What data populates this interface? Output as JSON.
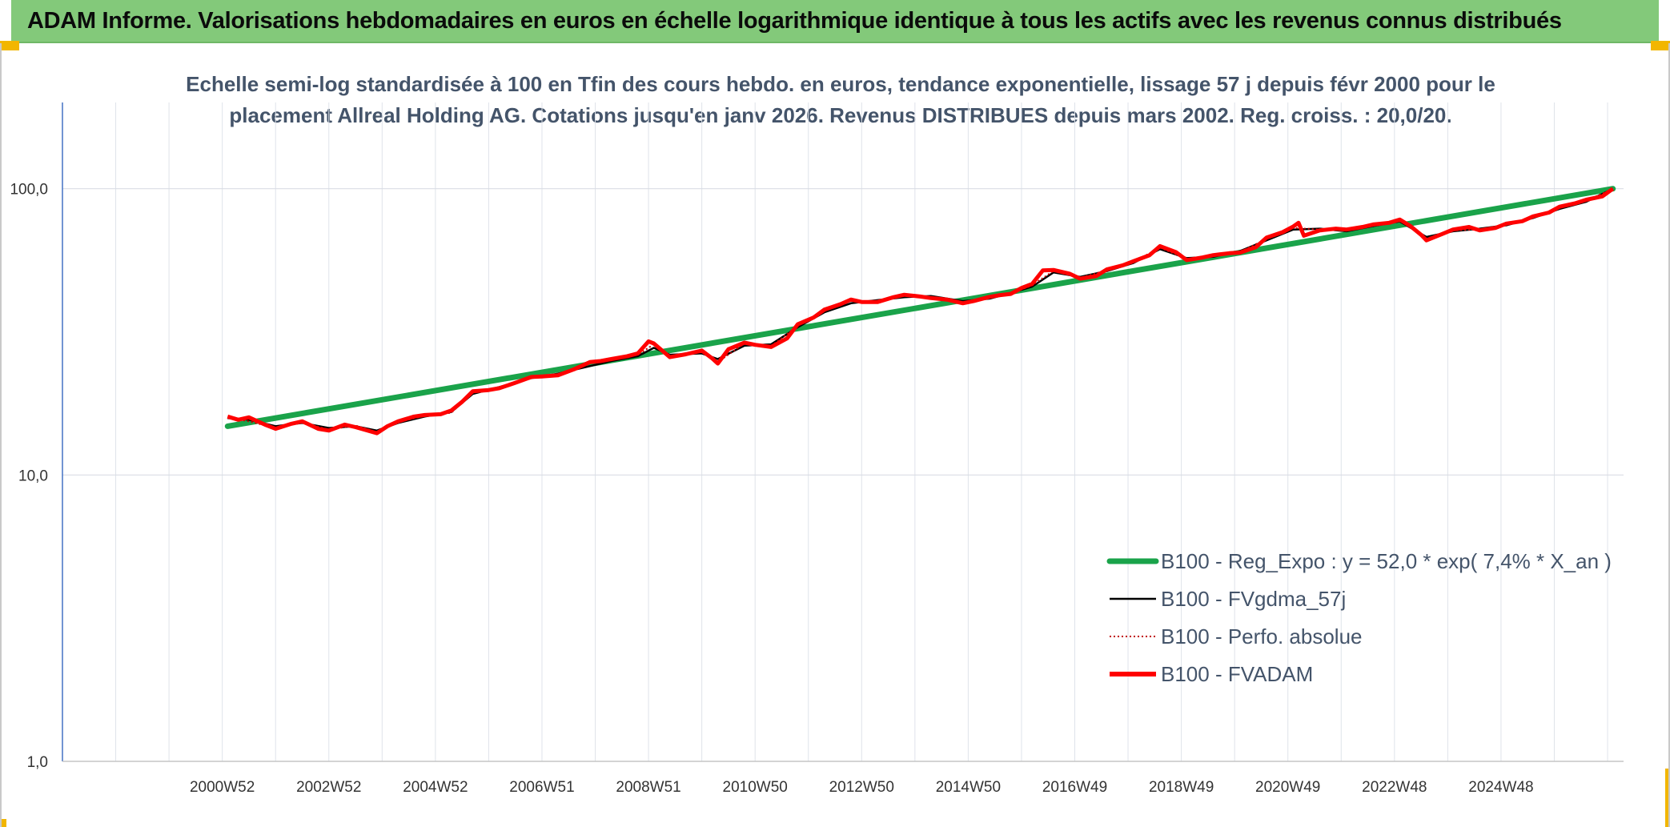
{
  "header": {
    "title": "ADAM Informe. Valorisations hebdomadaires en euros en échelle logarithmique identique à tous les actifs avec les revenus connus distribués"
  },
  "colors": {
    "banner": "#83c97a",
    "corner": "#f2b600",
    "trend": "#1aa34a",
    "fvgdma": "#000000",
    "perfo": "#c00000",
    "fvadam": "#ff0000",
    "subtitle": "#44546a"
  },
  "chart_data": {
    "type": "line",
    "title": "Echelle semi-log standardisée à 100 en Tfin des cours hebdo. en euros, tendance exponentielle, lissage 57 j depuis févr 2000 pour le placement Allreal Holding AG. Cotations jusqu'en janv 2026. Revenus DISTRIBUES depuis mars 2002. Reg. croiss. : 20,0/20.",
    "title_lines": [
      "Echelle semi-log standardisée à 100 en Tfin des cours hebdo. en euros, tendance exponentielle, lissage 57 j depuis févr 2000 pour le",
      "placement Allreal Holding AG. Cotations jusqu'en janv 2026. Revenus DISTRIBUES depuis mars 2002. Reg. croiss. : 20,0/20."
    ],
    "y_scale": "log",
    "ylim": [
      1,
      200
    ],
    "y_ticks": [
      1,
      10,
      100
    ],
    "y_tick_labels": [
      "1,0",
      "10,0",
      "100,0"
    ],
    "xlim": [
      1997.0,
      2026.3
    ],
    "x_ticks": [
      2000.0,
      2002.0,
      2004.0,
      2006.0,
      2008.0,
      2010.0,
      2012.0,
      2014.0,
      2016.0,
      2018.0,
      2020.0,
      2022.0,
      2024.0
    ],
    "x_tick_labels": [
      "2000W52",
      "2002W52",
      "2004W52",
      "2006W51",
      "2008W51",
      "2010W50",
      "2012W50",
      "2014W50",
      "2016W49",
      "2018W49",
      "2020W49",
      "2022W48",
      "2024W48"
    ],
    "grid": true,
    "legend_position": "bottom-right",
    "series": [
      {
        "name": "B100 - Reg_Expo : y = 52,0 * exp( 7,4% *  X_an )",
        "style": "trend",
        "points": [
          [
            2000.1,
            14.8
          ],
          [
            2026.1,
            100.0
          ]
        ]
      },
      {
        "name": "B100 - FVgdma_57j",
        "style": "smooth",
        "points": [
          [
            2000.1,
            15.8
          ],
          [
            2000.5,
            15.6
          ],
          [
            2001.0,
            14.8
          ],
          [
            2001.5,
            15.2
          ],
          [
            2002.0,
            14.6
          ],
          [
            2002.5,
            14.8
          ],
          [
            2002.9,
            14.3
          ],
          [
            2003.3,
            15.2
          ],
          [
            2003.8,
            16.0
          ],
          [
            2004.3,
            16.6
          ],
          [
            2004.7,
            19.2
          ],
          [
            2005.2,
            20.3
          ],
          [
            2005.8,
            21.8
          ],
          [
            2006.3,
            22.6
          ],
          [
            2006.9,
            24.0
          ],
          [
            2007.3,
            25.0
          ],
          [
            2007.8,
            26.0
          ],
          [
            2008.1,
            27.8
          ],
          [
            2008.4,
            26.3
          ],
          [
            2009.0,
            26.6
          ],
          [
            2009.3,
            25.4
          ],
          [
            2009.8,
            28.3
          ],
          [
            2010.3,
            28.6
          ],
          [
            2010.8,
            32.8
          ],
          [
            2011.3,
            37.0
          ],
          [
            2011.8,
            39.8
          ],
          [
            2012.3,
            40.8
          ],
          [
            2012.8,
            41.8
          ],
          [
            2013.3,
            42.2
          ],
          [
            2013.9,
            40.5
          ],
          [
            2014.4,
            41.3
          ],
          [
            2014.8,
            43.2
          ],
          [
            2015.2,
            45.5
          ],
          [
            2015.6,
            51.0
          ],
          [
            2016.1,
            49.2
          ],
          [
            2016.6,
            51.5
          ],
          [
            2017.1,
            55.0
          ],
          [
            2017.6,
            61.5
          ],
          [
            2018.1,
            57.2
          ],
          [
            2018.6,
            57.8
          ],
          [
            2019.1,
            60.5
          ],
          [
            2019.6,
            66.0
          ],
          [
            2020.1,
            72.0
          ],
          [
            2020.6,
            72.5
          ],
          [
            2021.1,
            71.0
          ],
          [
            2021.6,
            74.0
          ],
          [
            2022.1,
            76.8
          ],
          [
            2022.6,
            67.8
          ],
          [
            2023.1,
            71.0
          ],
          [
            2023.6,
            72.5
          ],
          [
            2024.1,
            74.5
          ],
          [
            2024.6,
            79.0
          ],
          [
            2025.1,
            85.0
          ],
          [
            2025.6,
            90.0
          ],
          [
            2026.1,
            100.0
          ]
        ]
      },
      {
        "name": "B100 - Perfo. absolue",
        "style": "dotted",
        "points": [
          [
            2000.1,
            15.9
          ],
          [
            2000.5,
            15.4
          ],
          [
            2001.0,
            14.6
          ],
          [
            2001.5,
            15.3
          ],
          [
            2002.0,
            14.4
          ],
          [
            2002.5,
            14.9
          ],
          [
            2002.9,
            14.1
          ],
          [
            2003.3,
            15.3
          ],
          [
            2003.8,
            16.1
          ],
          [
            2004.3,
            16.5
          ],
          [
            2004.7,
            19.4
          ],
          [
            2005.2,
            20.2
          ],
          [
            2005.8,
            21.9
          ],
          [
            2006.3,
            22.4
          ],
          [
            2006.9,
            24.5
          ],
          [
            2007.3,
            25.2
          ],
          [
            2007.8,
            26.3
          ],
          [
            2008.1,
            28.6
          ],
          [
            2008.4,
            26.0
          ],
          [
            2009.0,
            27.0
          ],
          [
            2009.3,
            24.8
          ],
          [
            2009.8,
            28.8
          ],
          [
            2010.3,
            28.2
          ],
          [
            2010.8,
            33.2
          ],
          [
            2011.3,
            37.4
          ],
          [
            2011.8,
            40.6
          ],
          [
            2012.3,
            40.4
          ],
          [
            2012.8,
            42.3
          ],
          [
            2013.3,
            41.8
          ],
          [
            2013.9,
            40.1
          ],
          [
            2014.4,
            41.7
          ],
          [
            2014.8,
            43.0
          ],
          [
            2015.2,
            46.0
          ],
          [
            2015.6,
            51.6
          ],
          [
            2016.1,
            48.8
          ],
          [
            2016.6,
            51.9
          ],
          [
            2017.1,
            55.4
          ],
          [
            2017.6,
            62.3
          ],
          [
            2018.1,
            56.7
          ],
          [
            2018.6,
            58.2
          ],
          [
            2019.1,
            60.1
          ],
          [
            2019.6,
            66.8
          ],
          [
            2020.1,
            73.0
          ],
          [
            2020.6,
            72.0
          ],
          [
            2021.1,
            71.5
          ],
          [
            2021.6,
            74.6
          ],
          [
            2022.1,
            77.5
          ],
          [
            2022.6,
            67.0
          ],
          [
            2023.1,
            71.5
          ],
          [
            2023.6,
            72.0
          ],
          [
            2024.1,
            75.0
          ],
          [
            2024.6,
            79.5
          ],
          [
            2025.1,
            85.8
          ],
          [
            2025.6,
            90.8
          ],
          [
            2026.1,
            100.0
          ]
        ]
      },
      {
        "name": "B100 - FVADAM",
        "style": "thick",
        "points": [
          [
            2000.1,
            16.0
          ],
          [
            2000.3,
            15.6
          ],
          [
            2000.5,
            15.9
          ],
          [
            2000.8,
            15.0
          ],
          [
            2001.0,
            14.5
          ],
          [
            2001.3,
            15.1
          ],
          [
            2001.5,
            15.4
          ],
          [
            2001.8,
            14.5
          ],
          [
            2002.0,
            14.3
          ],
          [
            2002.3,
            15.0
          ],
          [
            2002.5,
            14.7
          ],
          [
            2002.9,
            14.0
          ],
          [
            2003.1,
            14.8
          ],
          [
            2003.3,
            15.4
          ],
          [
            2003.6,
            16.0
          ],
          [
            2003.8,
            16.2
          ],
          [
            2004.1,
            16.3
          ],
          [
            2004.3,
            16.8
          ],
          [
            2004.5,
            18.0
          ],
          [
            2004.7,
            19.6
          ],
          [
            2005.0,
            19.8
          ],
          [
            2005.2,
            20.1
          ],
          [
            2005.5,
            21.0
          ],
          [
            2005.8,
            22.0
          ],
          [
            2006.0,
            22.1
          ],
          [
            2006.3,
            22.3
          ],
          [
            2006.6,
            23.4
          ],
          [
            2006.9,
            24.8
          ],
          [
            2007.1,
            25.0
          ],
          [
            2007.3,
            25.4
          ],
          [
            2007.6,
            26.0
          ],
          [
            2007.8,
            26.6
          ],
          [
            2008.0,
            29.3
          ],
          [
            2008.1,
            28.8
          ],
          [
            2008.4,
            25.8
          ],
          [
            2008.7,
            26.4
          ],
          [
            2009.0,
            27.2
          ],
          [
            2009.2,
            25.5
          ],
          [
            2009.3,
            24.5
          ],
          [
            2009.5,
            27.5
          ],
          [
            2009.8,
            29.0
          ],
          [
            2010.0,
            28.5
          ],
          [
            2010.3,
            28.0
          ],
          [
            2010.6,
            30.0
          ],
          [
            2010.8,
            33.6
          ],
          [
            2011.1,
            35.5
          ],
          [
            2011.3,
            37.8
          ],
          [
            2011.6,
            39.5
          ],
          [
            2011.8,
            41.0
          ],
          [
            2012.0,
            40.2
          ],
          [
            2012.3,
            40.2
          ],
          [
            2012.6,
            41.8
          ],
          [
            2012.8,
            42.6
          ],
          [
            2013.1,
            42.0
          ],
          [
            2013.3,
            41.5
          ],
          [
            2013.6,
            41.0
          ],
          [
            2013.9,
            39.8
          ],
          [
            2014.1,
            40.5
          ],
          [
            2014.4,
            41.9
          ],
          [
            2014.6,
            42.5
          ],
          [
            2014.8,
            42.9
          ],
          [
            2015.0,
            45.0
          ],
          [
            2015.2,
            46.5
          ],
          [
            2015.4,
            51.8
          ],
          [
            2015.6,
            52.0
          ],
          [
            2015.9,
            50.5
          ],
          [
            2016.1,
            48.5
          ],
          [
            2016.4,
            49.5
          ],
          [
            2016.6,
            52.2
          ],
          [
            2016.9,
            54.0
          ],
          [
            2017.1,
            55.8
          ],
          [
            2017.4,
            58.5
          ],
          [
            2017.6,
            63.0
          ],
          [
            2017.9,
            60.0
          ],
          [
            2018.1,
            56.3
          ],
          [
            2018.4,
            57.5
          ],
          [
            2018.6,
            58.6
          ],
          [
            2018.9,
            59.5
          ],
          [
            2019.1,
            59.8
          ],
          [
            2019.4,
            62.5
          ],
          [
            2019.6,
            67.5
          ],
          [
            2019.9,
            70.5
          ],
          [
            2020.1,
            73.8
          ],
          [
            2020.2,
            76.0
          ],
          [
            2020.3,
            68.5
          ],
          [
            2020.6,
            71.5
          ],
          [
            2020.9,
            72.5
          ],
          [
            2021.1,
            72.0
          ],
          [
            2021.4,
            73.5
          ],
          [
            2021.6,
            75.0
          ],
          [
            2021.9,
            76.0
          ],
          [
            2022.1,
            78.0
          ],
          [
            2022.3,
            74.0
          ],
          [
            2022.5,
            69.0
          ],
          [
            2022.6,
            66.0
          ],
          [
            2022.9,
            69.5
          ],
          [
            2023.1,
            72.0
          ],
          [
            2023.4,
            73.5
          ],
          [
            2023.6,
            71.5
          ],
          [
            2023.9,
            73.0
          ],
          [
            2024.1,
            75.5
          ],
          [
            2024.4,
            77.0
          ],
          [
            2024.6,
            80.0
          ],
          [
            2024.9,
            82.5
          ],
          [
            2025.1,
            86.5
          ],
          [
            2025.4,
            89.0
          ],
          [
            2025.6,
            91.5
          ],
          [
            2025.9,
            94.0
          ],
          [
            2026.1,
            100.0
          ]
        ]
      }
    ]
  }
}
